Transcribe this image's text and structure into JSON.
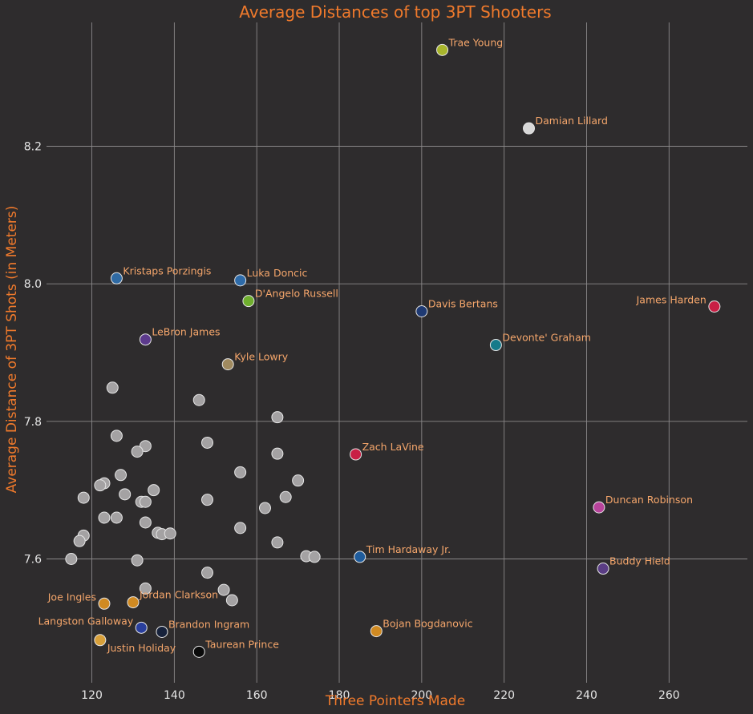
{
  "chart_data": {
    "type": "scatter",
    "title": "Average Distances of top 3PT Shooters",
    "xlabel": "Three Pointers Made",
    "ylabel": "Average Distance of 3PT Shots (in Meters)",
    "xlim": [
      109,
      279
    ],
    "ylim": [
      7.42,
      8.38
    ],
    "x_ticks": [
      120,
      140,
      160,
      180,
      200,
      220,
      240,
      260
    ],
    "y_ticks": [
      7.6,
      7.8,
      8.0,
      8.2
    ],
    "grid": true,
    "highlighted": [
      {
        "name": "Trae Young",
        "x": 205,
        "y": 8.34,
        "color": "#a8b52c",
        "label_side": "right"
      },
      {
        "name": "Damian Lillard",
        "x": 226,
        "y": 8.226,
        "color": "#d8d8d8",
        "label_side": "right"
      },
      {
        "name": "Kristaps Porzingis",
        "x": 126,
        "y": 8.008,
        "color": "#2f6aa3",
        "label_side": "right"
      },
      {
        "name": "Luka Doncic",
        "x": 156,
        "y": 8.005,
        "color": "#2e6ba9",
        "label_side": "right"
      },
      {
        "name": "D'Angelo Russell",
        "x": 158,
        "y": 7.975,
        "color": "#6fae2e",
        "label_side": "right"
      },
      {
        "name": "James Harden",
        "x": 271,
        "y": 7.967,
        "color": "#c81f45",
        "label_side": "left"
      },
      {
        "name": "Davis Bertans",
        "x": 200,
        "y": 7.96,
        "color": "#1f3a73",
        "label_side": "right"
      },
      {
        "name": "LeBron James",
        "x": 133,
        "y": 7.919,
        "color": "#5c3a8c",
        "label_side": "right"
      },
      {
        "name": "Devonte' Graham",
        "x": 218,
        "y": 7.911,
        "color": "#167a8a",
        "label_side": "right"
      },
      {
        "name": "Kyle Lowry",
        "x": 153,
        "y": 7.883,
        "color": "#a08a5f",
        "label_side": "right"
      },
      {
        "name": "Zach LaVine",
        "x": 184,
        "y": 7.752,
        "color": "#c81f45",
        "label_side": "right"
      },
      {
        "name": "Duncan Robinson",
        "x": 243,
        "y": 7.675,
        "color": "#b8449c",
        "label_side": "right"
      },
      {
        "name": "Tim Hardaway Jr.",
        "x": 185,
        "y": 7.603,
        "color": "#1f5c9c",
        "label_side": "right"
      },
      {
        "name": "Buddy Hield",
        "x": 244,
        "y": 7.586,
        "color": "#5a3d84",
        "label_side": "right"
      },
      {
        "name": "Joe Ingles",
        "x": 123,
        "y": 7.535,
        "color": "#d08a22",
        "label_side": "left"
      },
      {
        "name": "Jordan Clarkson",
        "x": 130,
        "y": 7.537,
        "color": "#d08a22",
        "label_side": "right"
      },
      {
        "name": "Langston Galloway",
        "x": 132,
        "y": 7.5,
        "color": "#2a3f9c",
        "label_side": "left"
      },
      {
        "name": "Brandon Ingram",
        "x": 137,
        "y": 7.494,
        "color": "#17223b",
        "label_side": "right"
      },
      {
        "name": "Bojan Bogdanovic",
        "x": 189,
        "y": 7.495,
        "color": "#d08a22",
        "label_side": "right"
      },
      {
        "name": "Justin Holiday",
        "x": 122,
        "y": 7.482,
        "color": "#d8a03a",
        "label_side": "below-right"
      },
      {
        "name": "Taurean Prince",
        "x": 146,
        "y": 7.465,
        "color": "#0a0a0a",
        "label_side": "right"
      }
    ],
    "others_color": "#a4a2a3",
    "others": [
      {
        "x": 125,
        "y": 7.849
      },
      {
        "x": 146,
        "y": 7.831
      },
      {
        "x": 165,
        "y": 7.806
      },
      {
        "x": 126,
        "y": 7.779
      },
      {
        "x": 148,
        "y": 7.769
      },
      {
        "x": 133,
        "y": 7.764
      },
      {
        "x": 131,
        "y": 7.756
      },
      {
        "x": 165,
        "y": 7.753
      },
      {
        "x": 156,
        "y": 7.726
      },
      {
        "x": 127,
        "y": 7.722
      },
      {
        "x": 170,
        "y": 7.714
      },
      {
        "x": 123,
        "y": 7.71
      },
      {
        "x": 122,
        "y": 7.707
      },
      {
        "x": 135,
        "y": 7.7
      },
      {
        "x": 128,
        "y": 7.694
      },
      {
        "x": 118,
        "y": 7.689
      },
      {
        "x": 167,
        "y": 7.69
      },
      {
        "x": 148,
        "y": 7.686
      },
      {
        "x": 132,
        "y": 7.683
      },
      {
        "x": 133,
        "y": 7.683
      },
      {
        "x": 162,
        "y": 7.674
      },
      {
        "x": 123,
        "y": 7.66
      },
      {
        "x": 126,
        "y": 7.66
      },
      {
        "x": 133,
        "y": 7.653
      },
      {
        "x": 156,
        "y": 7.645
      },
      {
        "x": 136,
        "y": 7.638
      },
      {
        "x": 137,
        "y": 7.636
      },
      {
        "x": 139,
        "y": 7.637
      },
      {
        "x": 118,
        "y": 7.634
      },
      {
        "x": 117,
        "y": 7.626
      },
      {
        "x": 165,
        "y": 7.624
      },
      {
        "x": 172,
        "y": 7.604
      },
      {
        "x": 174,
        "y": 7.603
      },
      {
        "x": 115,
        "y": 7.6
      },
      {
        "x": 131,
        "y": 7.598
      },
      {
        "x": 148,
        "y": 7.58
      },
      {
        "x": 133,
        "y": 7.557
      },
      {
        "x": 152,
        "y": 7.555
      },
      {
        "x": 154,
        "y": 7.54
      }
    ]
  }
}
